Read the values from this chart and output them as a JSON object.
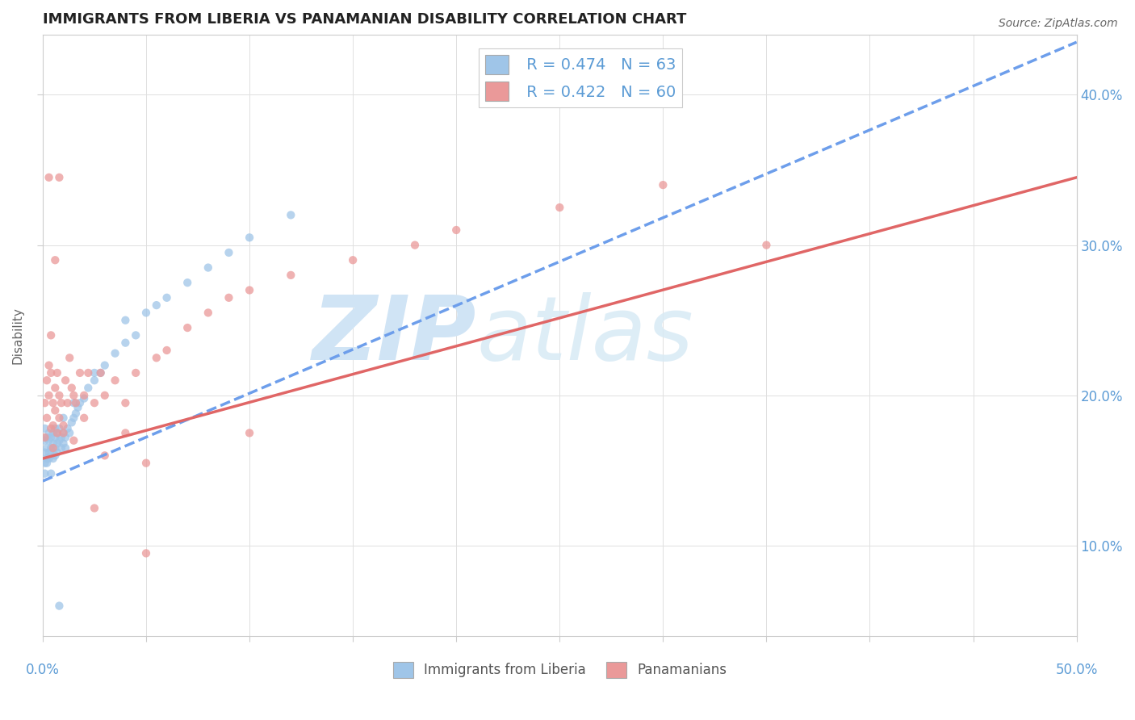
{
  "title": "IMMIGRANTS FROM LIBERIA VS PANAMANIAN DISABILITY CORRELATION CHART",
  "source": "Source: ZipAtlas.com",
  "ylabel": "Disability",
  "xmin": 0.0,
  "xmax": 0.5,
  "ymin": 0.04,
  "ymax": 0.44,
  "yticks": [
    0.1,
    0.2,
    0.3,
    0.4
  ],
  "right_ytick_labels": [
    "10.0%",
    "20.0%",
    "30.0%",
    "40.0%"
  ],
  "blue_color": "#9fc5e8",
  "pink_color": "#ea9999",
  "blue_line_color": "#6d9eeb",
  "pink_line_color": "#e06666",
  "watermark_zip_color": "#d0e4f5",
  "watermark_atlas_color": "#d0e4f5",
  "R_blue": 0.474,
  "N_blue": 63,
  "R_pink": 0.422,
  "N_pink": 60,
  "blue_line_x0": 0.0,
  "blue_line_y0": 0.143,
  "blue_line_x1": 0.5,
  "blue_line_y1": 0.435,
  "pink_line_x0": 0.0,
  "pink_line_y0": 0.158,
  "pink_line_x1": 0.5,
  "pink_line_y1": 0.345,
  "blue_scatter_x": [
    0.001,
    0.001,
    0.001,
    0.001,
    0.001,
    0.002,
    0.002,
    0.002,
    0.002,
    0.003,
    0.003,
    0.003,
    0.003,
    0.004,
    0.004,
    0.004,
    0.005,
    0.005,
    0.005,
    0.006,
    0.006,
    0.006,
    0.007,
    0.007,
    0.007,
    0.008,
    0.008,
    0.009,
    0.009,
    0.01,
    0.01,
    0.011,
    0.011,
    0.012,
    0.013,
    0.014,
    0.015,
    0.016,
    0.017,
    0.018,
    0.02,
    0.022,
    0.025,
    0.028,
    0.03,
    0.035,
    0.04,
    0.045,
    0.05,
    0.055,
    0.06,
    0.07,
    0.08,
    0.09,
    0.1,
    0.12,
    0.04,
    0.025,
    0.015,
    0.01,
    0.006,
    0.004,
    0.008
  ],
  "blue_scatter_y": [
    0.155,
    0.162,
    0.17,
    0.178,
    0.148,
    0.158,
    0.165,
    0.172,
    0.155,
    0.162,
    0.17,
    0.158,
    0.175,
    0.165,
    0.172,
    0.16,
    0.168,
    0.175,
    0.158,
    0.165,
    0.172,
    0.16,
    0.168,
    0.175,
    0.162,
    0.17,
    0.178,
    0.165,
    0.172,
    0.168,
    0.175,
    0.172,
    0.165,
    0.178,
    0.175,
    0.182,
    0.185,
    0.188,
    0.192,
    0.195,
    0.198,
    0.205,
    0.21,
    0.215,
    0.22,
    0.228,
    0.235,
    0.24,
    0.255,
    0.26,
    0.265,
    0.275,
    0.285,
    0.295,
    0.305,
    0.32,
    0.25,
    0.215,
    0.195,
    0.185,
    0.178,
    0.148,
    0.06
  ],
  "pink_scatter_x": [
    0.001,
    0.001,
    0.002,
    0.002,
    0.003,
    0.003,
    0.004,
    0.004,
    0.005,
    0.005,
    0.006,
    0.006,
    0.007,
    0.007,
    0.008,
    0.008,
    0.009,
    0.01,
    0.011,
    0.012,
    0.013,
    0.014,
    0.015,
    0.016,
    0.018,
    0.02,
    0.022,
    0.025,
    0.028,
    0.03,
    0.035,
    0.04,
    0.045,
    0.05,
    0.055,
    0.06,
    0.07,
    0.08,
    0.09,
    0.1,
    0.12,
    0.15,
    0.18,
    0.2,
    0.25,
    0.3,
    0.35,
    0.03,
    0.01,
    0.005,
    0.003,
    0.02,
    0.015,
    0.04,
    0.025,
    0.008,
    0.006,
    0.004,
    0.05,
    0.1
  ],
  "pink_scatter_y": [
    0.172,
    0.195,
    0.185,
    0.21,
    0.22,
    0.2,
    0.215,
    0.178,
    0.195,
    0.165,
    0.205,
    0.19,
    0.215,
    0.175,
    0.2,
    0.185,
    0.195,
    0.18,
    0.21,
    0.195,
    0.225,
    0.205,
    0.2,
    0.195,
    0.215,
    0.2,
    0.215,
    0.195,
    0.215,
    0.2,
    0.21,
    0.195,
    0.215,
    0.155,
    0.225,
    0.23,
    0.245,
    0.255,
    0.265,
    0.27,
    0.28,
    0.29,
    0.3,
    0.31,
    0.325,
    0.34,
    0.3,
    0.16,
    0.175,
    0.18,
    0.345,
    0.185,
    0.17,
    0.175,
    0.125,
    0.345,
    0.29,
    0.24,
    0.095,
    0.175
  ],
  "title_color": "#222222",
  "axis_label_color": "#5b9bd5",
  "legend_label_color": "#5b9bd5"
}
